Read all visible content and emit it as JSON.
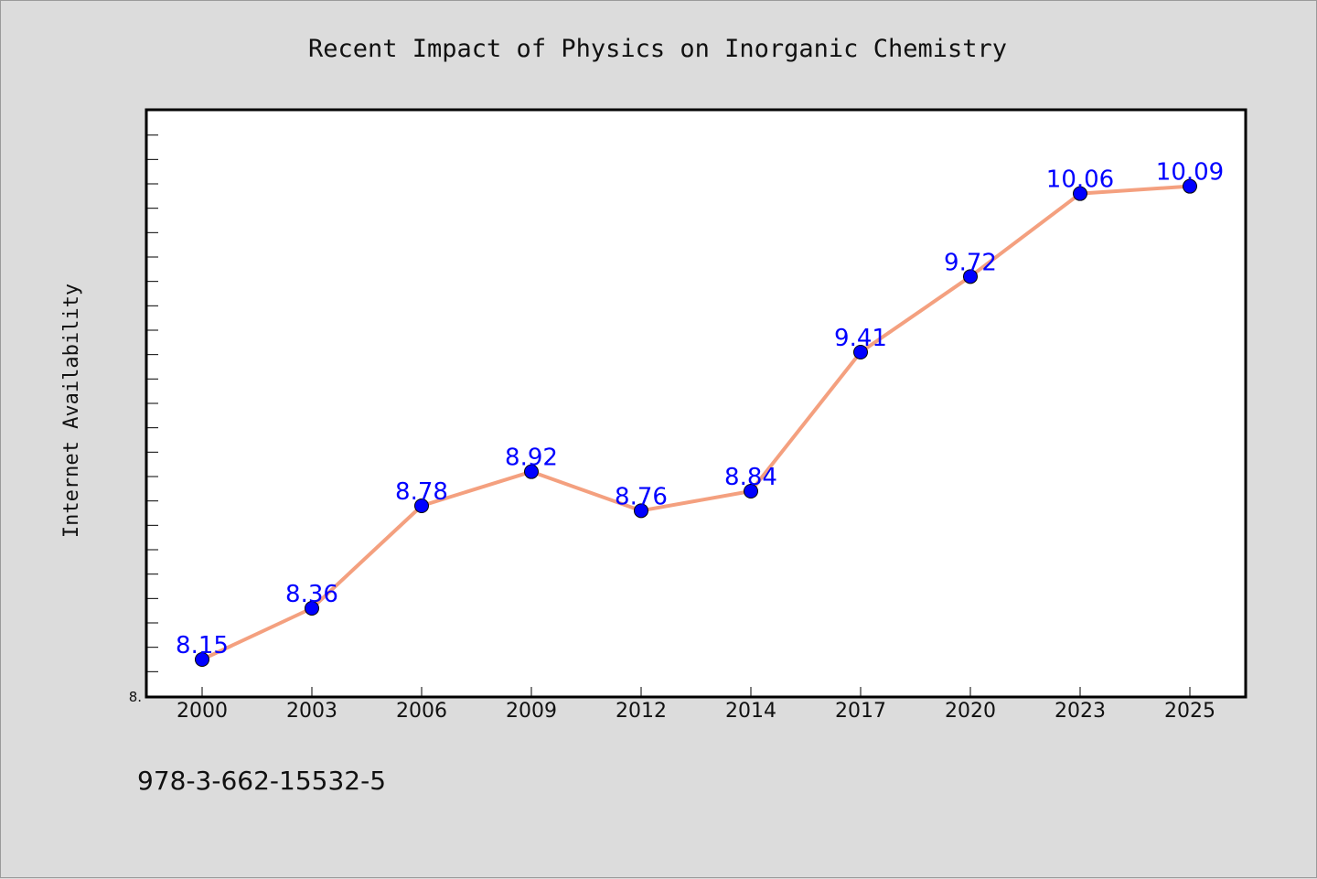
{
  "chart_data": {
    "type": "line",
    "title": "Recent Impact of Physics on Inorganic Chemistry",
    "xlabel": "",
    "ylabel": "Internet Availability",
    "categories": [
      "2000",
      "2003",
      "2006",
      "2009",
      "2012",
      "2014",
      "2017",
      "2020",
      "2023",
      "2025"
    ],
    "series": [
      {
        "values": [
          8.15,
          8.36,
          8.78,
          8.92,
          8.76,
          8.84,
          9.41,
          9.72,
          10.06,
          10.09
        ],
        "data_labels": [
          "8.15",
          "8.36",
          "8.78",
          "8.92",
          "8.76",
          "8.84",
          "9.41",
          "9.72",
          "10.06",
          "10.09"
        ]
      }
    ],
    "ylim": [
      8.0,
      10.4
    ],
    "ytick_labels": [
      "8."
    ],
    "grid": false,
    "legend": "none",
    "colors": {
      "line": "#f4a07f",
      "marker": "#0000ff",
      "data_label": "#0000ff",
      "plot_background": "#ffffff",
      "figure_background": "#dcdcdc"
    }
  },
  "footnote": "978-3-662-15532-5"
}
